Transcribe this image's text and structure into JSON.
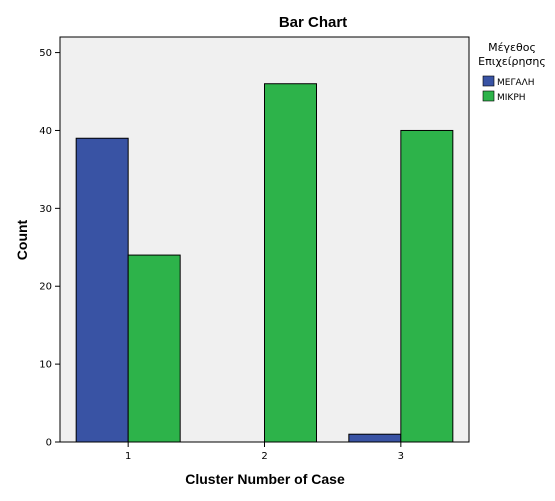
{
  "chart_data": {
    "type": "bar",
    "title": "Bar Chart",
    "xlabel": "Cluster Number of Case",
    "ylabel": "Count",
    "categories": [
      "1",
      "2",
      "3"
    ],
    "ylim": [
      0,
      52
    ],
    "yticks": [
      0,
      10,
      20,
      30,
      40,
      50
    ],
    "grid": false,
    "legend_position": "top-right",
    "legend_title_lines": [
      "Μέγεθος",
      "Επιχείρησης"
    ],
    "series": [
      {
        "name": "ΜΕΓΑΛΗ",
        "color": "#3953A4",
        "values": [
          39,
          0,
          1
        ]
      },
      {
        "name": "ΜΙΚΡΗ",
        "color": "#2DB34A",
        "values": [
          24,
          46,
          40
        ]
      }
    ],
    "plot_background": "#F0F0F0"
  }
}
